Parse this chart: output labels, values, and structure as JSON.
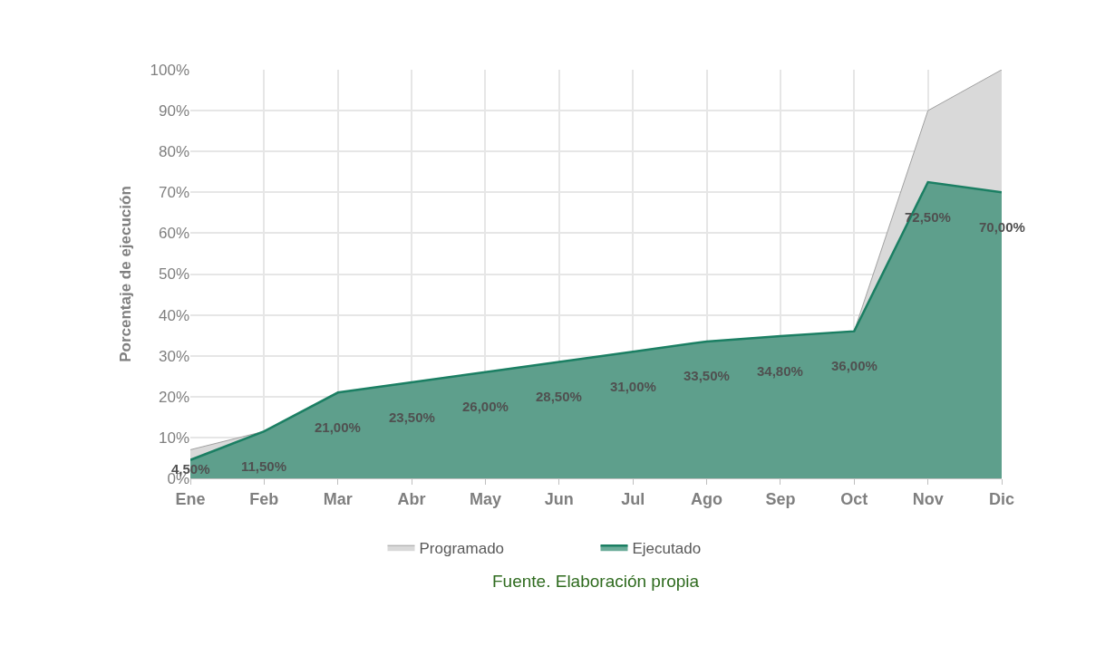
{
  "chart_data": {
    "type": "area",
    "ylabel": "Porcentaje de ejecución",
    "categories": [
      "Ene",
      "Feb",
      "Mar",
      "Abr",
      "May",
      "Jun",
      "Jul",
      "Ago",
      "Sep",
      "Oct",
      "Nov",
      "Dic"
    ],
    "series": [
      {
        "name": "Programado",
        "color": "#d9d9d9",
        "values": [
          7,
          11.5,
          21,
          23.5,
          26,
          28.5,
          31,
          33.5,
          34.8,
          36,
          90,
          100
        ]
      },
      {
        "name": "Ejecutado",
        "color": "#1b7f63",
        "values": [
          4.5,
          11.5,
          21,
          23.5,
          26,
          28.5,
          31,
          33.5,
          34.8,
          36,
          72.5,
          70
        ],
        "value_labels": [
          "4,50%",
          "11,50%",
          "21,00%",
          "23,50%",
          "26,00%",
          "28,50%",
          "31,00%",
          "33,50%",
          "34,80%",
          "36,00%",
          "72,50%",
          "70,00%"
        ]
      }
    ],
    "ylim": [
      0,
      100
    ],
    "yticks": [
      {
        "value": 0,
        "label": "0%"
      },
      {
        "value": 10,
        "label": "10%"
      },
      {
        "value": 20,
        "label": "20%"
      },
      {
        "value": 30,
        "label": "30%"
      },
      {
        "value": 40,
        "label": "40%"
      },
      {
        "value": 50,
        "label": "50%"
      },
      {
        "value": 60,
        "label": "60%"
      },
      {
        "value": 70,
        "label": "70%"
      },
      {
        "value": 80,
        "label": "80%"
      },
      {
        "value": 90,
        "label": "90%"
      },
      {
        "value": 100,
        "label": "100%"
      }
    ],
    "grid": true,
    "legend": "bottom",
    "marker": "none",
    "annotations": [
      "Fuente. Elaboración propia"
    ]
  }
}
